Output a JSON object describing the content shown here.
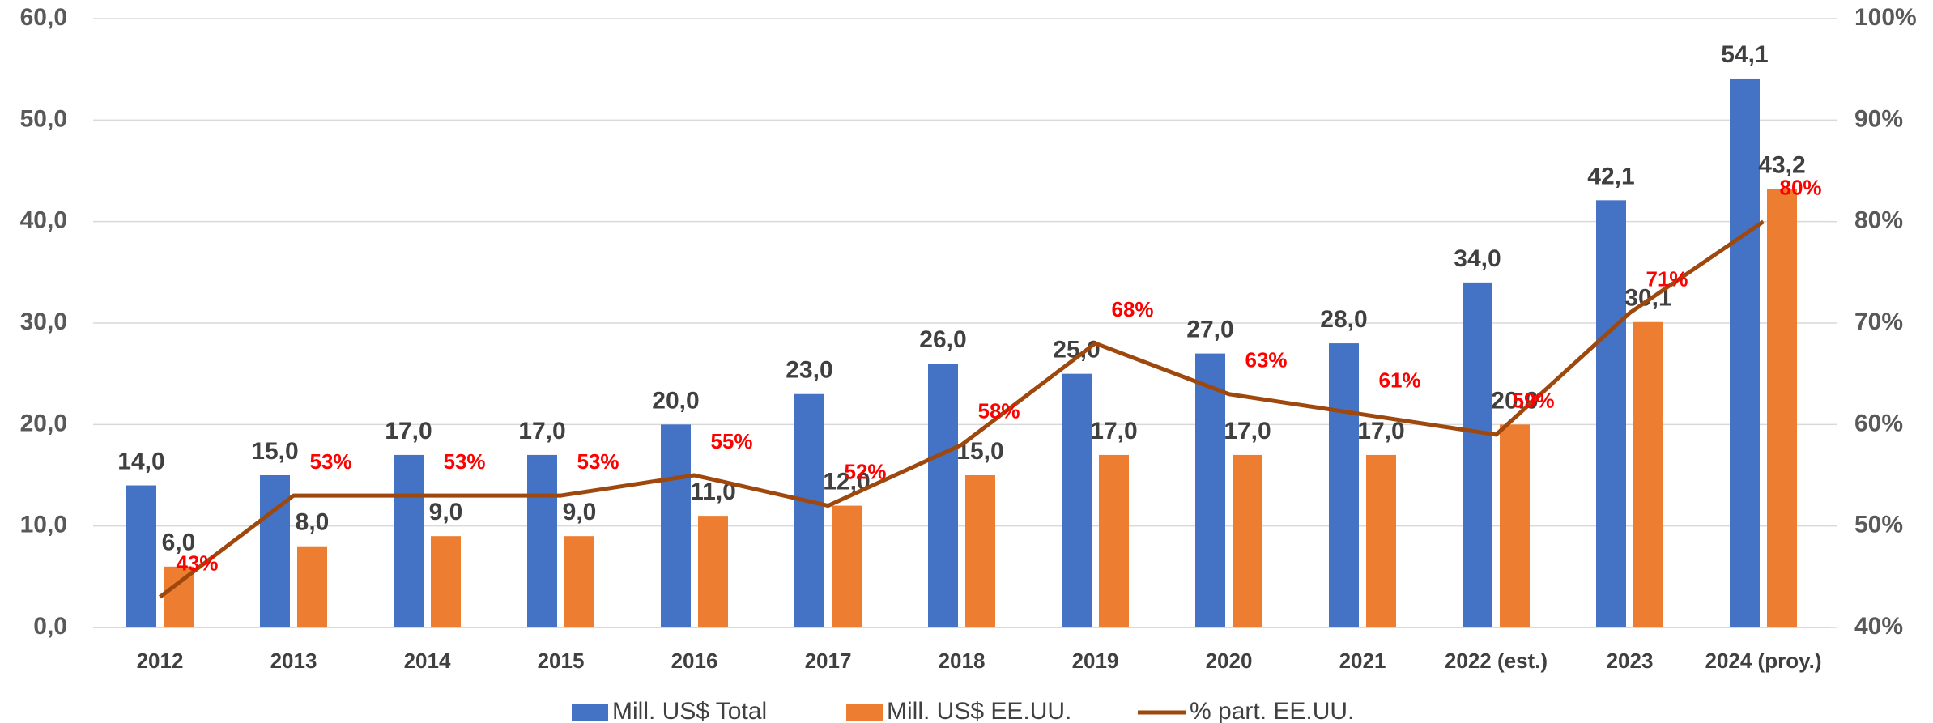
{
  "chart_data": {
    "type": "bar_line",
    "categories": [
      "2012",
      "2013",
      "2014",
      "2015",
      "2016",
      "2017",
      "2018",
      "2019",
      "2020",
      "2021",
      "2022 (est.)",
      "2023",
      "2024 (proy.)"
    ],
    "series": [
      {
        "name": "Mill. US$ Total",
        "color": "#4472c4",
        "type": "bar",
        "values": [
          14,
          15,
          17,
          17,
          20,
          23,
          26,
          25,
          27,
          28,
          34,
          42.1,
          54.1
        ],
        "value_labels": [
          "14,0",
          "15,0",
          "17,0",
          "17,0",
          "20,0",
          "23,0",
          "26,0",
          "25,0",
          "27,0",
          "28,0",
          "34,0",
          "42,1",
          "54,1"
        ]
      },
      {
        "name": "Mill. US$ EE.UU.",
        "color": "#ed7d31",
        "type": "bar",
        "values": [
          6,
          8,
          9,
          9,
          11,
          12,
          15,
          17,
          17,
          17,
          20,
          30.1,
          43.2
        ],
        "value_labels": [
          "6,0",
          "8,0",
          "9,0",
          "9,0",
          "11,0",
          "12,0",
          "15,0",
          "17,0",
          "17,0",
          "17,0",
          "20,0",
          "30,1",
          "43,2"
        ]
      },
      {
        "name": "% part. EE.UU.",
        "color": "#9e480e",
        "type": "line",
        "axis": "y2",
        "label_color": "#ff0000",
        "values": [
          43,
          53,
          53,
          53,
          55,
          52,
          58,
          68,
          63,
          61,
          59,
          71,
          80
        ],
        "value_labels": [
          "43%",
          "53%",
          "53%",
          "53%",
          "55%",
          "52%",
          "58%",
          "68%",
          "63%",
          "61%",
          "59%",
          "71%",
          "80%"
        ]
      }
    ],
    "ylim": [
      0,
      60
    ],
    "yticks": [
      {
        "value": 0,
        "label": "0,0"
      },
      {
        "value": 10,
        "label": "10,0"
      },
      {
        "value": 20,
        "label": "20,0"
      },
      {
        "value": 30,
        "label": "30,0"
      },
      {
        "value": 40,
        "label": "40,0"
      },
      {
        "value": 50,
        "label": "50,0"
      },
      {
        "value": 60,
        "label": "60,0"
      }
    ],
    "y2lim": [
      40,
      100
    ],
    "y2ticks": [
      {
        "value": 40,
        "label": "40%"
      },
      {
        "value": 50,
        "label": "50%"
      },
      {
        "value": 60,
        "label": "60%"
      },
      {
        "value": 70,
        "label": "70%"
      },
      {
        "value": 80,
        "label": "80%"
      },
      {
        "value": 90,
        "label": "90%"
      },
      {
        "value": 100,
        "label": "100%"
      }
    ],
    "grid": true,
    "legend": "bottom"
  }
}
